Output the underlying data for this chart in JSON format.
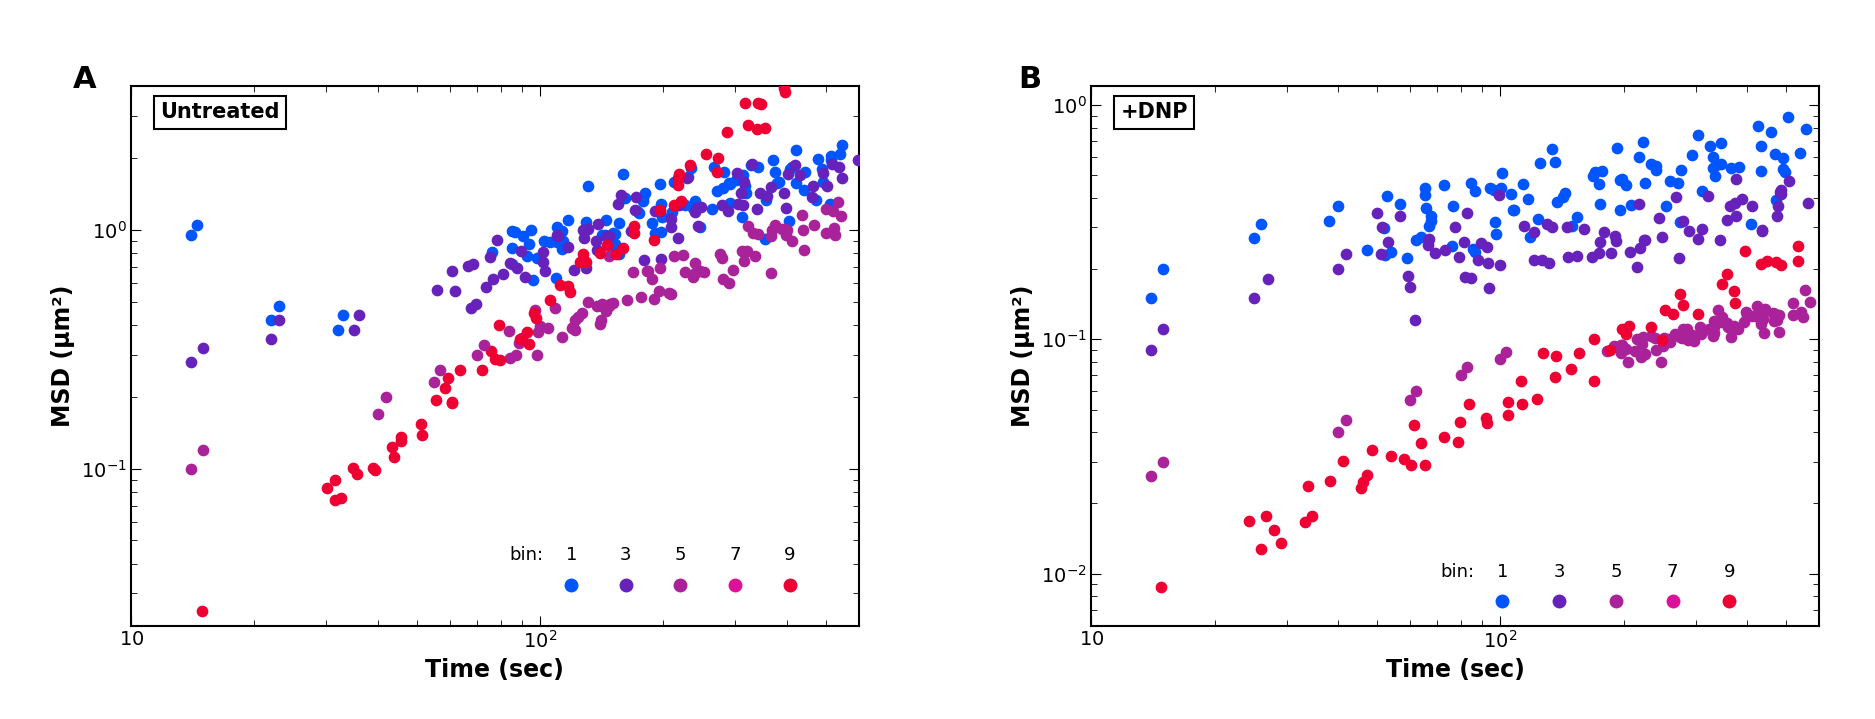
{
  "panel_A_title": "Untreated",
  "panel_B_title": "+DNP",
  "xlabel": "Time (sec)",
  "ylabel": "MSD (μm²)",
  "panel_A_label": "A",
  "panel_B_label": "B",
  "bin_label": "bin:",
  "bin_numbers": [
    "1",
    "3",
    "5",
    "7",
    "9"
  ],
  "colors": {
    "bin1": "#0055FF",
    "bin3": "#6622BB",
    "bin5": "#AA2299",
    "bin7": "#DD1199",
    "bin9": "#EE0033"
  },
  "marker_size": 55,
  "background_color": "#FFFFFF",
  "panel_A_ylim": [
    0.022,
    4.0
  ],
  "panel_A_xlim": [
    10,
    600
  ],
  "panel_B_ylim": [
    0.006,
    1.2
  ],
  "panel_B_xlim": [
    10,
    600
  ]
}
